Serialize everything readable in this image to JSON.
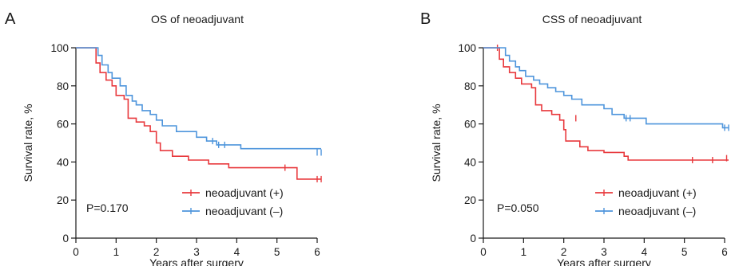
{
  "chart_data": [
    {
      "type": "line",
      "panel": "A",
      "title": "OS of neoadjuvant",
      "xlabel": "Years after surgery",
      "ylabel": "Survival rate, %",
      "xlim": [
        0,
        6
      ],
      "ylim": [
        0,
        100
      ],
      "xticks": [
        "0",
        "1",
        "2",
        "3",
        "4",
        "5",
        "6"
      ],
      "yticks": [
        "0",
        "20",
        "40",
        "60",
        "80",
        "100"
      ],
      "annotation": "P=0.170",
      "legend_position": "bottom-right",
      "series": [
        {
          "name": "neoadjuvant (+)",
          "color": "#e8393d",
          "points": [
            [
              0,
              100
            ],
            [
              0.5,
              100
            ],
            [
              0.5,
              92
            ],
            [
              0.6,
              92
            ],
            [
              0.6,
              87
            ],
            [
              0.75,
              87
            ],
            [
              0.75,
              83
            ],
            [
              0.9,
              83
            ],
            [
              0.9,
              80
            ],
            [
              1.0,
              80
            ],
            [
              1.0,
              75
            ],
            [
              1.2,
              75
            ],
            [
              1.2,
              73
            ],
            [
              1.3,
              73
            ],
            [
              1.3,
              63
            ],
            [
              1.5,
              63
            ],
            [
              1.5,
              61
            ],
            [
              1.7,
              61
            ],
            [
              1.7,
              59
            ],
            [
              1.85,
              59
            ],
            [
              1.85,
              56
            ],
            [
              2.0,
              56
            ],
            [
              2.0,
              50
            ],
            [
              2.1,
              50
            ],
            [
              2.1,
              46
            ],
            [
              2.4,
              46
            ],
            [
              2.4,
              43
            ],
            [
              2.8,
              43
            ],
            [
              2.8,
              41
            ],
            [
              3.3,
              41
            ],
            [
              3.3,
              39
            ],
            [
              3.8,
              39
            ],
            [
              3.8,
              37
            ],
            [
              5.5,
              37
            ],
            [
              5.5,
              31
            ],
            [
              6.1,
              31
            ]
          ],
          "censor": [
            [
              5.2,
              37
            ],
            [
              6.0,
              31
            ],
            [
              6.1,
              31
            ]
          ]
        },
        {
          "name": "neoadjuvant (–)",
          "color": "#4e95dc",
          "points": [
            [
              0,
              100
            ],
            [
              0.55,
              100
            ],
            [
              0.55,
              96
            ],
            [
              0.65,
              96
            ],
            [
              0.65,
              91
            ],
            [
              0.8,
              91
            ],
            [
              0.8,
              87
            ],
            [
              0.9,
              87
            ],
            [
              0.9,
              84
            ],
            [
              1.1,
              84
            ],
            [
              1.1,
              80
            ],
            [
              1.25,
              80
            ],
            [
              1.25,
              75
            ],
            [
              1.4,
              75
            ],
            [
              1.4,
              72
            ],
            [
              1.5,
              72
            ],
            [
              1.5,
              70
            ],
            [
              1.65,
              70
            ],
            [
              1.65,
              67
            ],
            [
              1.85,
              67
            ],
            [
              1.85,
              65
            ],
            [
              2.0,
              65
            ],
            [
              2.0,
              62
            ],
            [
              2.15,
              62
            ],
            [
              2.15,
              59
            ],
            [
              2.5,
              59
            ],
            [
              2.5,
              56
            ],
            [
              3.0,
              56
            ],
            [
              3.0,
              53
            ],
            [
              3.25,
              53
            ],
            [
              3.25,
              51
            ],
            [
              3.5,
              51
            ],
            [
              3.5,
              49
            ],
            [
              4.1,
              49
            ],
            [
              4.1,
              47
            ],
            [
              6.1,
              47
            ]
          ],
          "censor": [
            [
              3.4,
              51
            ],
            [
              3.55,
              49
            ],
            [
              3.7,
              49
            ],
            [
              6.0,
              45
            ],
            [
              6.1,
              45
            ]
          ]
        }
      ]
    },
    {
      "type": "line",
      "panel": "B",
      "title": "CSS of neoadjuvant",
      "xlabel": "Years after surgery",
      "ylabel": "Survival rate, %",
      "xlim": [
        0,
        6
      ],
      "ylim": [
        0,
        100
      ],
      "xticks": [
        "0",
        "1",
        "2",
        "3",
        "4",
        "5",
        "6"
      ],
      "yticks": [
        "0",
        "20",
        "40",
        "60",
        "80",
        "100"
      ],
      "annotation": "P=0.050",
      "legend_position": "bottom-right",
      "series": [
        {
          "name": "neoadjuvant (+)",
          "color": "#e8393d",
          "points": [
            [
              0,
              100
            ],
            [
              0.4,
              100
            ],
            [
              0.4,
              94
            ],
            [
              0.5,
              94
            ],
            [
              0.5,
              90
            ],
            [
              0.65,
              90
            ],
            [
              0.65,
              87
            ],
            [
              0.8,
              87
            ],
            [
              0.8,
              84
            ],
            [
              0.95,
              84
            ],
            [
              0.95,
              81
            ],
            [
              1.2,
              81
            ],
            [
              1.2,
              79
            ],
            [
              1.3,
              79
            ],
            [
              1.3,
              70
            ],
            [
              1.45,
              70
            ],
            [
              1.45,
              67
            ],
            [
              1.7,
              67
            ],
            [
              1.7,
              65
            ],
            [
              1.9,
              65
            ],
            [
              1.9,
              62
            ],
            [
              2.0,
              62
            ],
            [
              2.0,
              57
            ],
            [
              2.05,
              57
            ],
            [
              2.05,
              51
            ],
            [
              2.4,
              51
            ],
            [
              2.4,
              48
            ],
            [
              2.6,
              48
            ],
            [
              2.6,
              46
            ],
            [
              3.0,
              46
            ],
            [
              3.0,
              45
            ],
            [
              3.5,
              45
            ],
            [
              3.5,
              43
            ],
            [
              3.6,
              43
            ],
            [
              3.6,
              41
            ],
            [
              6.1,
              41
            ]
          ],
          "censor": [
            [
              0.35,
              100
            ],
            [
              2.3,
              63
            ],
            [
              5.2,
              41
            ],
            [
              5.7,
              41
            ],
            [
              6.05,
              42
            ]
          ]
        },
        {
          "name": "neoadjuvant (–)",
          "color": "#4e95dc",
          "points": [
            [
              0,
              100
            ],
            [
              0.55,
              100
            ],
            [
              0.55,
              96
            ],
            [
              0.65,
              96
            ],
            [
              0.65,
              93
            ],
            [
              0.8,
              93
            ],
            [
              0.8,
              90
            ],
            [
              0.9,
              90
            ],
            [
              0.9,
              88
            ],
            [
              1.05,
              88
            ],
            [
              1.05,
              85
            ],
            [
              1.25,
              85
            ],
            [
              1.25,
              83
            ],
            [
              1.4,
              83
            ],
            [
              1.4,
              81
            ],
            [
              1.6,
              81
            ],
            [
              1.6,
              79
            ],
            [
              1.8,
              79
            ],
            [
              1.8,
              77
            ],
            [
              2.0,
              77
            ],
            [
              2.0,
              75
            ],
            [
              2.2,
              75
            ],
            [
              2.2,
              73
            ],
            [
              2.45,
              73
            ],
            [
              2.45,
              70
            ],
            [
              3.0,
              70
            ],
            [
              3.0,
              68
            ],
            [
              3.2,
              68
            ],
            [
              3.2,
              65
            ],
            [
              3.5,
              65
            ],
            [
              3.5,
              63
            ],
            [
              4.05,
              63
            ],
            [
              4.05,
              60
            ],
            [
              5.95,
              60
            ],
            [
              5.95,
              58
            ],
            [
              6.1,
              58
            ]
          ],
          "censor": [
            [
              3.55,
              63
            ],
            [
              3.65,
              63
            ],
            [
              6.0,
              58
            ],
            [
              6.1,
              58
            ]
          ]
        }
      ]
    }
  ]
}
